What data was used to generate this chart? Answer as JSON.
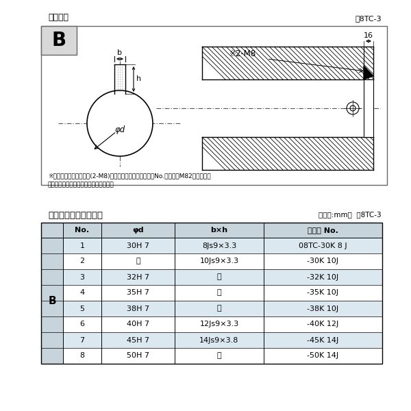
{
  "title_top": "軸穴形状",
  "fig_label_top": "図8TC-3",
  "label_B": "B",
  "note_m8": "※2-M8",
  "dim_16": "16",
  "note_bottom1": "※セットボルト用タップ(2-M8)が必要な場合は右記コードNo.の末尾にM82を付ける。",
  "note_bottom2": "（セットボルトは付属されています。）",
  "table_title": "軸穴形状コード一覧表",
  "table_unit": "（単位:mm）  表8TC-3",
  "table_headers": [
    "No.",
    "φd",
    "b×h",
    "コード No."
  ],
  "table_col_B": "B",
  "table_rows": [
    [
      "1",
      "30H 7",
      "8Js9×3.3",
      "08TC-30K 8 J"
    ],
    [
      "2",
      "〃",
      "10Js9×3.3",
      "-30K 10J"
    ],
    [
      "3",
      "32H 7",
      "〃",
      "-32K 10J"
    ],
    [
      "4",
      "35H 7",
      "〃",
      "-35K 10J"
    ],
    [
      "5",
      "38H 7",
      "〃",
      "-38K 10J"
    ],
    [
      "6",
      "40H 7",
      "12Js9×3.3",
      "-40K 12J"
    ],
    [
      "7",
      "45H 7",
      "14Js9×3.8",
      "-45K 14J"
    ],
    [
      "8",
      "50H 7",
      "〃",
      "-50K 14J"
    ]
  ],
  "bg_color": "#ffffff",
  "header_bg": "#c8d4dc",
  "row_odd_bg": "#dce8f0",
  "row_even_bg": "#ffffff",
  "b_cell_bg": "#c8d4dc",
  "text_color": "#000000",
  "label_dim_b": "b",
  "label_dim_h": "h",
  "label_dim_d": "φd"
}
